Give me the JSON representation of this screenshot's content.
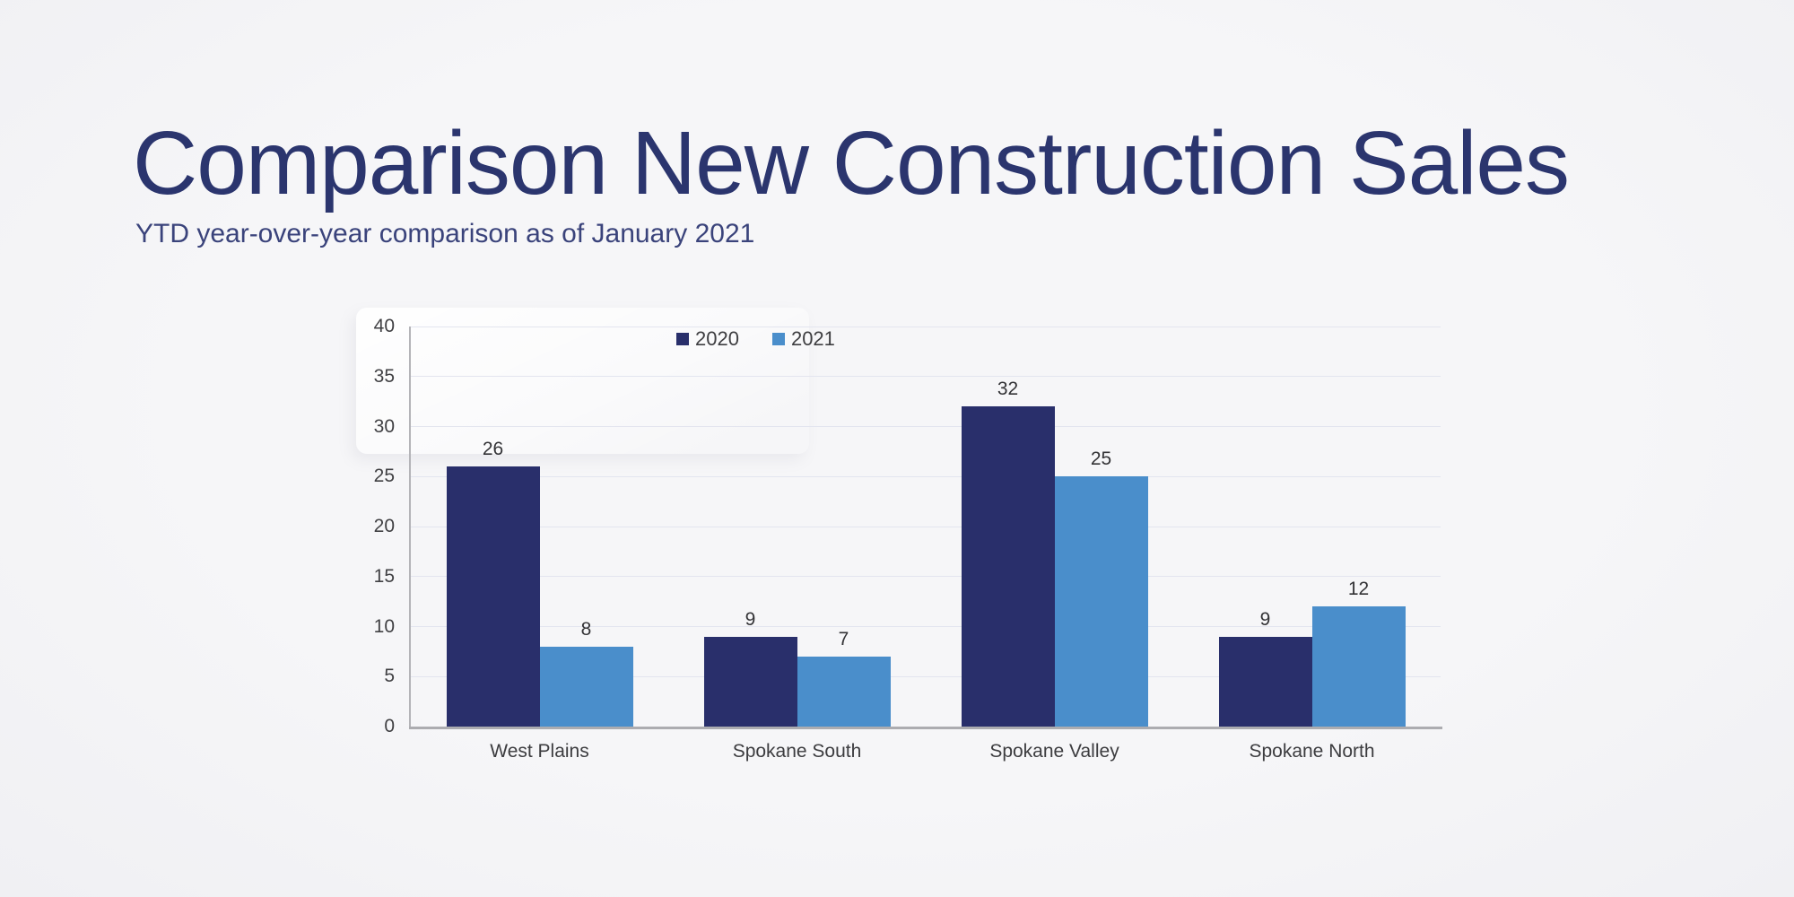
{
  "header": {
    "title": "Comparison New Construction Sales",
    "subtitle": "YTD year-over-year comparison as of January 2021"
  },
  "palette": {
    "background": "#f5f5f7",
    "title_navy": "#2b356e",
    "subtitle_navy": "#3a437b",
    "gridline": "#e3e5ef",
    "axis_line": "#b0b0b4",
    "series_2020": "#292f6b",
    "series_2021": "#4a8ecb"
  },
  "chart_data": {
    "type": "bar",
    "title": "",
    "xlabel": "",
    "ylabel": "",
    "categories": [
      "West Plains",
      "Spokane South",
      "Spokane Valley",
      "Spokane North"
    ],
    "series": [
      {
        "name": "2020",
        "color": "#292f6b",
        "values": [
          26,
          9,
          32,
          9
        ]
      },
      {
        "name": "2021",
        "color": "#4a8ecb",
        "values": [
          8,
          7,
          25,
          12
        ]
      }
    ],
    "ylim": [
      0,
      40
    ],
    "ytick_step": 5,
    "yticks": [
      0,
      5,
      10,
      15,
      20,
      25,
      30,
      35,
      40
    ],
    "grid": true,
    "legend_position": "top",
    "data_labels": true
  }
}
